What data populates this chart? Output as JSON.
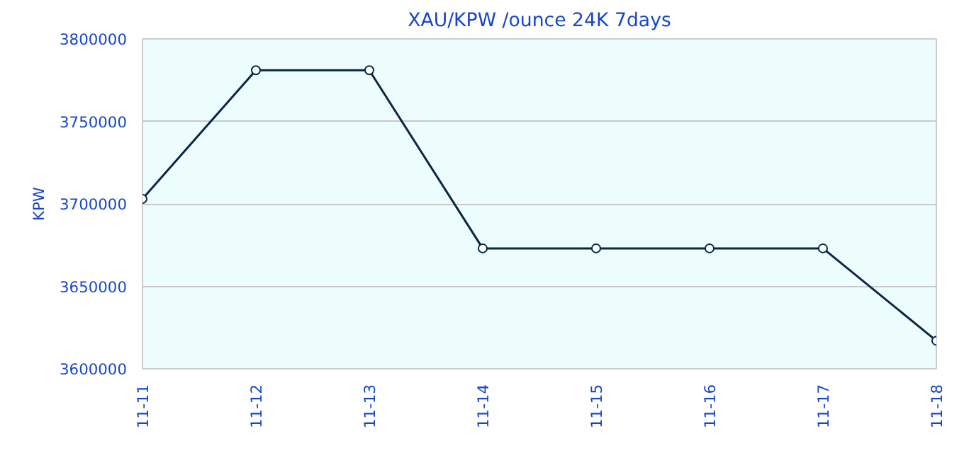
{
  "chart_data": {
    "type": "line",
    "title": "XAU/KPW /ounce 24K 7days",
    "ylabel": "KPW",
    "categories": [
      "11-11",
      "11-12",
      "11-13",
      "11-14",
      "11-15",
      "11-16",
      "11-17",
      "11-18"
    ],
    "series": [
      {
        "color": "#0b2545",
        "values": [
          3703000,
          3781000,
          3781000,
          3673000,
          3673000,
          3673000,
          3673000,
          3617000
        ]
      }
    ],
    "ylim": [
      3600000,
      3800000
    ],
    "yticks": [
      3600000,
      3650000,
      3700000,
      3750000,
      3800000
    ],
    "grid": "y",
    "marker": "circle",
    "line_style": "solid"
  }
}
